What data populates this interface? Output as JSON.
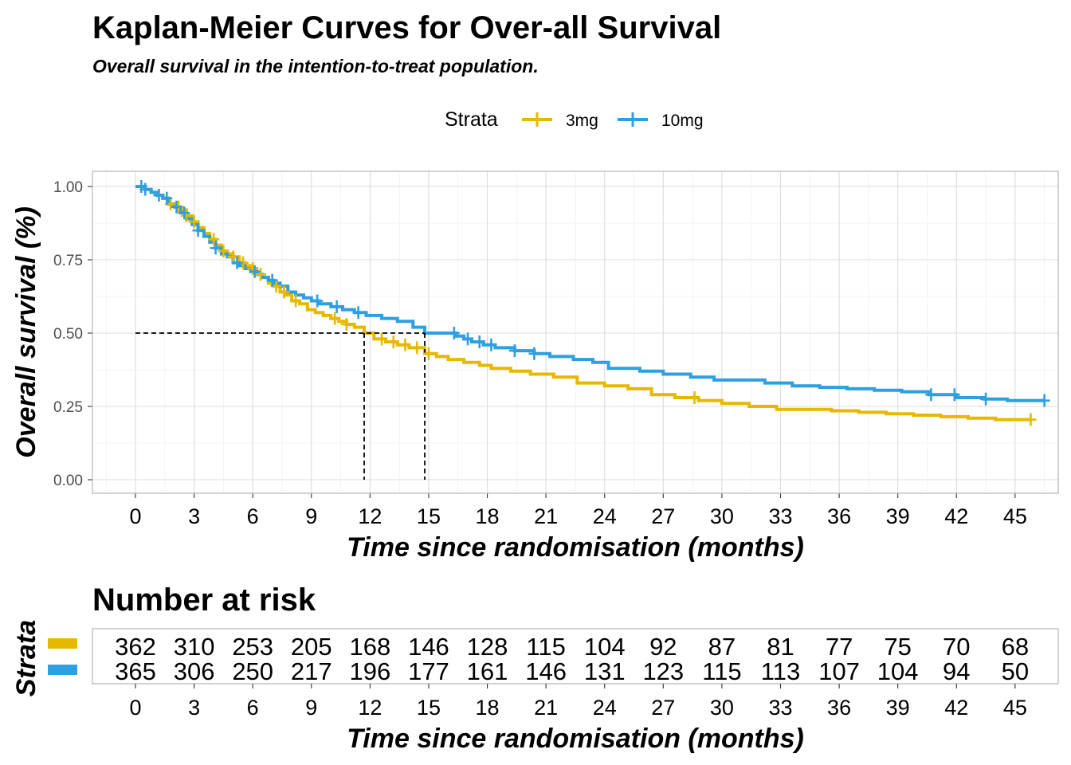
{
  "chart_data": {
    "type": "line",
    "title": "Kaplan-Meier Curves for Over-all Survival",
    "subtitle": "Overall survival in the intention-to-treat population.",
    "xlabel": "Time since randomisation (months)",
    "ylabel": "Overall survival (%)",
    "xlim": [
      0,
      46.5
    ],
    "ylim": [
      0,
      1
    ],
    "x_ticks": [
      "0",
      "3",
      "6",
      "9",
      "12",
      "15",
      "18",
      "21",
      "24",
      "27",
      "30",
      "33",
      "36",
      "39",
      "42",
      "45"
    ],
    "y_ticks": [
      "0.00",
      "0.25",
      "0.50",
      "0.75",
      "1.00"
    ],
    "grid": true,
    "legend": {
      "title": "Strata",
      "position": "top"
    },
    "median_survival": {
      "3mg": 11.7,
      "10mg": 14.8
    },
    "series": [
      {
        "name": "3mg",
        "color": "#E7B800",
        "x": [
          0,
          0.5,
          0.8,
          1.1,
          1.4,
          1.7,
          2.0,
          2.3,
          2.6,
          2.9,
          3.2,
          3.5,
          3.8,
          4.1,
          4.4,
          4.7,
          5.0,
          5.3,
          5.6,
          5.9,
          6.2,
          6.5,
          6.8,
          7.1,
          7.4,
          7.7,
          8.0,
          8.4,
          8.8,
          9.2,
          9.6,
          10.0,
          10.4,
          10.8,
          11.2,
          11.7,
          12.2,
          12.8,
          13.4,
          14.0,
          14.8,
          15.4,
          16.0,
          16.8,
          17.6,
          18.2,
          19.2,
          20.2,
          21.4,
          22.6,
          24.0,
          25.2,
          26.4,
          27.6,
          28.8,
          30.0,
          31.4,
          32.8,
          34.2,
          35.6,
          37.0,
          38.4,
          39.8,
          41.2,
          42.6,
          44.0,
          45.8
        ],
        "y": [
          1.0,
          0.99,
          0.98,
          0.97,
          0.96,
          0.94,
          0.93,
          0.92,
          0.9,
          0.88,
          0.86,
          0.84,
          0.82,
          0.8,
          0.78,
          0.77,
          0.76,
          0.74,
          0.73,
          0.72,
          0.7,
          0.69,
          0.67,
          0.66,
          0.64,
          0.63,
          0.61,
          0.6,
          0.58,
          0.57,
          0.56,
          0.55,
          0.54,
          0.53,
          0.52,
          0.5,
          0.48,
          0.47,
          0.46,
          0.45,
          0.43,
          0.42,
          0.41,
          0.4,
          0.39,
          0.38,
          0.37,
          0.36,
          0.35,
          0.33,
          0.32,
          0.31,
          0.29,
          0.28,
          0.27,
          0.26,
          0.25,
          0.24,
          0.24,
          0.235,
          0.23,
          0.225,
          0.22,
          0.215,
          0.21,
          0.205,
          0.205
        ]
      },
      {
        "name": "10mg",
        "color": "#2E9FDF",
        "x": [
          0,
          0.5,
          0.8,
          1.1,
          1.4,
          1.7,
          2.0,
          2.3,
          2.6,
          2.9,
          3.2,
          3.5,
          3.8,
          4.1,
          4.4,
          4.7,
          5.0,
          5.3,
          5.6,
          5.9,
          6.2,
          6.5,
          6.8,
          7.1,
          7.4,
          7.8,
          8.2,
          8.6,
          9.0,
          9.4,
          10.0,
          10.6,
          11.2,
          11.8,
          12.6,
          13.4,
          14.2,
          14.8,
          15.6,
          16.4,
          16.8,
          17.2,
          17.8,
          18.4,
          19.4,
          20.4,
          21.2,
          22.4,
          23.4,
          24.2,
          25.8,
          27.0,
          28.4,
          29.6,
          30.8,
          32.2,
          33.6,
          35.0,
          36.4,
          37.8,
          39.2,
          40.6,
          42.0,
          43.4,
          44.6,
          46.5
        ],
        "y": [
          1.0,
          0.99,
          0.98,
          0.97,
          0.96,
          0.94,
          0.93,
          0.91,
          0.89,
          0.87,
          0.85,
          0.83,
          0.81,
          0.79,
          0.77,
          0.76,
          0.74,
          0.73,
          0.72,
          0.71,
          0.7,
          0.69,
          0.68,
          0.67,
          0.66,
          0.64,
          0.63,
          0.62,
          0.61,
          0.6,
          0.59,
          0.58,
          0.57,
          0.56,
          0.55,
          0.54,
          0.52,
          0.5,
          0.5,
          0.49,
          0.48,
          0.47,
          0.46,
          0.45,
          0.44,
          0.43,
          0.42,
          0.41,
          0.4,
          0.38,
          0.37,
          0.36,
          0.35,
          0.34,
          0.34,
          0.33,
          0.32,
          0.315,
          0.31,
          0.305,
          0.3,
          0.29,
          0.28,
          0.275,
          0.27,
          0.27
        ]
      }
    ],
    "censor_marks": {
      "3mg": [
        1.8,
        2.2,
        2.6,
        3.0,
        4.0,
        4.5,
        5.0,
        5.5,
        6.0,
        6.4,
        7.2,
        7.6,
        8.2,
        10.2,
        10.8,
        12.6,
        13.2,
        13.8,
        14.4,
        15.0,
        28.6,
        45.8
      ],
      "10mg": [
        0.3,
        0.5,
        1.2,
        1.6,
        2.1,
        2.5,
        3.2,
        4.1,
        5.2,
        6.1,
        7.0,
        9.3,
        10.3,
        11.4,
        16.3,
        17.0,
        17.6,
        18.2,
        19.4,
        20.4,
        40.7,
        41.9,
        43.5,
        46.5
      ]
    }
  },
  "risk_table": {
    "title": "Number at risk",
    "strata_label": "Strata",
    "xlabel": "Time since randomisation (months)",
    "times": [
      0,
      3,
      6,
      9,
      12,
      15,
      18,
      21,
      24,
      27,
      30,
      33,
      36,
      39,
      42,
      45
    ],
    "rows": [
      {
        "color": "#E7B800",
        "values": [
          "362",
          "310",
          "253",
          "205",
          "168",
          "146",
          "128",
          "115",
          "104",
          "92",
          "87",
          "81",
          "77",
          "75",
          "70",
          "68"
        ]
      },
      {
        "color": "#2E9FDF",
        "values": [
          "365",
          "306",
          "250",
          "217",
          "196",
          "177",
          "161",
          "146",
          "131",
          "123",
          "115",
          "113",
          "107",
          "104",
          "94",
          "50"
        ]
      }
    ]
  }
}
